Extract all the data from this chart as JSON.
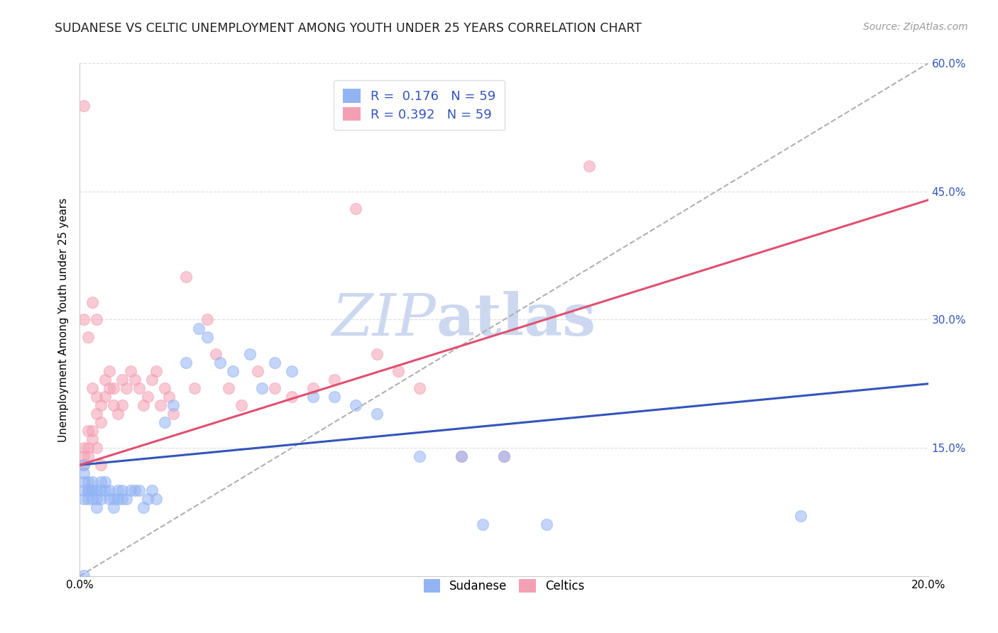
{
  "title": "SUDANESE VS CELTIC UNEMPLOYMENT AMONG YOUTH UNDER 25 YEARS CORRELATION CHART",
  "source": "Source: ZipAtlas.com",
  "ylabel": "Unemployment Among Youth under 25 years",
  "xlim": [
    0.0,
    0.2
  ],
  "ylim": [
    0.0,
    0.6
  ],
  "xtick_positions": [
    0.0,
    0.05,
    0.1,
    0.15,
    0.2
  ],
  "xtick_labels": [
    "0.0%",
    "",
    "",
    "",
    "20.0%"
  ],
  "ytick_positions": [
    0.0,
    0.15,
    0.3,
    0.45,
    0.6
  ],
  "ytick_labels": [
    "",
    "15.0%",
    "30.0%",
    "45.0%",
    "60.0%"
  ],
  "sudanese_R": 0.176,
  "celtics_R": 0.392,
  "N": 59,
  "sudanese_color": "#92b4f4",
  "celtics_color": "#f4a0b4",
  "sudanese_line_color": "#3355bb",
  "celtics_line_color": "#e05070",
  "watermark_color": "#ccd8f0",
  "background_color": "#ffffff",
  "grid_color": "#cccccc",
  "sudanese_line_x0": 0.0,
  "sudanese_line_y0": 0.13,
  "sudanese_line_x1": 0.2,
  "sudanese_line_y1": 0.225,
  "celtics_line_x0": 0.0,
  "celtics_line_y0": 0.13,
  "celtics_line_x1": 0.2,
  "celtics_line_y1": 0.44,
  "dash_line_x0": 0.0,
  "dash_line_y0": 0.0,
  "dash_line_x1": 0.2,
  "dash_line_y1": 0.6,
  "sudanese_x": [
    0.001,
    0.001,
    0.001,
    0.001,
    0.001,
    0.002,
    0.002,
    0.002,
    0.002,
    0.003,
    0.003,
    0.003,
    0.003,
    0.004,
    0.004,
    0.004,
    0.005,
    0.005,
    0.005,
    0.006,
    0.006,
    0.007,
    0.007,
    0.008,
    0.008,
    0.009,
    0.009,
    0.01,
    0.01,
    0.011,
    0.012,
    0.013,
    0.014,
    0.015,
    0.016,
    0.017,
    0.018,
    0.02,
    0.022,
    0.025,
    0.028,
    0.03,
    0.033,
    0.036,
    0.04,
    0.043,
    0.046,
    0.05,
    0.055,
    0.06,
    0.065,
    0.07,
    0.08,
    0.09,
    0.095,
    0.1,
    0.11,
    0.17,
    0.001
  ],
  "sudanese_y": [
    0.13,
    0.11,
    0.1,
    0.09,
    0.12,
    0.1,
    0.09,
    0.11,
    0.1,
    0.11,
    0.09,
    0.1,
    0.1,
    0.08,
    0.09,
    0.1,
    0.1,
    0.09,
    0.11,
    0.1,
    0.11,
    0.09,
    0.1,
    0.08,
    0.09,
    0.1,
    0.09,
    0.1,
    0.09,
    0.09,
    0.1,
    0.1,
    0.1,
    0.08,
    0.09,
    0.1,
    0.09,
    0.18,
    0.2,
    0.25,
    0.29,
    0.28,
    0.25,
    0.24,
    0.26,
    0.22,
    0.25,
    0.24,
    0.21,
    0.21,
    0.2,
    0.19,
    0.14,
    0.14,
    0.06,
    0.14,
    0.06,
    0.07,
    0.001
  ],
  "celtics_x": [
    0.001,
    0.001,
    0.001,
    0.001,
    0.002,
    0.002,
    0.002,
    0.003,
    0.003,
    0.003,
    0.004,
    0.004,
    0.004,
    0.005,
    0.005,
    0.006,
    0.006,
    0.007,
    0.007,
    0.008,
    0.008,
    0.009,
    0.01,
    0.01,
    0.011,
    0.012,
    0.013,
    0.014,
    0.015,
    0.016,
    0.017,
    0.018,
    0.019,
    0.02,
    0.021,
    0.022,
    0.025,
    0.027,
    0.03,
    0.032,
    0.035,
    0.038,
    0.042,
    0.046,
    0.05,
    0.055,
    0.06,
    0.065,
    0.07,
    0.075,
    0.08,
    0.09,
    0.1,
    0.12,
    0.001,
    0.002,
    0.003,
    0.004,
    0.005
  ],
  "celtics_y": [
    0.13,
    0.14,
    0.15,
    0.55,
    0.14,
    0.15,
    0.17,
    0.16,
    0.17,
    0.22,
    0.15,
    0.19,
    0.21,
    0.18,
    0.2,
    0.21,
    0.23,
    0.22,
    0.24,
    0.2,
    0.22,
    0.19,
    0.2,
    0.23,
    0.22,
    0.24,
    0.23,
    0.22,
    0.2,
    0.21,
    0.23,
    0.24,
    0.2,
    0.22,
    0.21,
    0.19,
    0.35,
    0.22,
    0.3,
    0.26,
    0.22,
    0.2,
    0.24,
    0.22,
    0.21,
    0.22,
    0.23,
    0.43,
    0.26,
    0.24,
    0.22,
    0.14,
    0.14,
    0.48,
    0.3,
    0.28,
    0.32,
    0.3,
    0.13
  ]
}
